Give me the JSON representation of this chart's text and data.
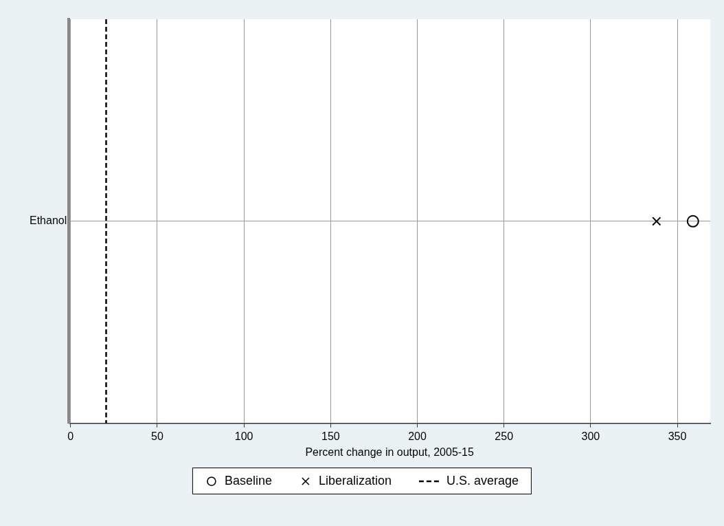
{
  "chart_data": {
    "type": "scatter",
    "orientation": "horizontal",
    "xlabel": "Percent change in output, 2005-15",
    "categories": [
      "Ethanol"
    ],
    "series": [
      {
        "name": "Baseline",
        "color": "#000000",
        "marker": "circle",
        "values": [
          359
        ]
      },
      {
        "name": "Liberalization",
        "color": "#000000",
        "marker": "cross",
        "values": [
          338
        ]
      }
    ],
    "xlim": [
      -1,
      369
    ],
    "xticks": [
      0,
      50,
      100,
      150,
      200,
      250,
      300,
      350
    ],
    "ref_lines": [
      {
        "axis": "x",
        "value": 20.5,
        "label": "U.S. average",
        "color": "#000000",
        "line_style": "dashed"
      }
    ],
    "grid": true,
    "legend": "bottom"
  }
}
